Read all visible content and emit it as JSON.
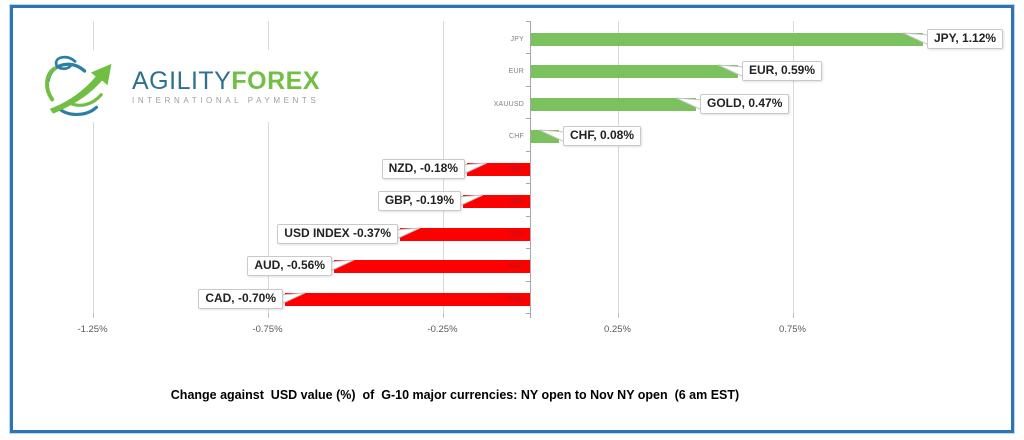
{
  "frame": {
    "border_color": "#2e75b6"
  },
  "logo": {
    "brand_part1": "AGILITY",
    "brand_part2": "FOREX",
    "tagline": "INTERNATIONAL PAYMENTS",
    "colors": {
      "agility": "#2f7092",
      "forex": "#72bf44",
      "tagline": "#9aa0a6",
      "icon_blue": "#2b7fa3",
      "icon_green": "#70bf44"
    }
  },
  "chart_data": {
    "type": "bar",
    "orientation": "horizontal",
    "title": "Change against  USD value (%)  of  G-10 major currencies: NY open to Nov NY open  (6 am EST)",
    "categories": [
      "JPY",
      "EUR",
      "XAUUSD",
      "CHF",
      "NZD",
      "GBP",
      "DXY",
      "AUD",
      "CAD"
    ],
    "values": [
      1.12,
      0.59,
      0.47,
      0.08,
      -0.18,
      -0.19,
      -0.37,
      -0.56,
      -0.7
    ],
    "data_labels": [
      "JPY, 1.12%",
      "EUR, 0.59%",
      "GOLD, 0.47%",
      "CHF, 0.08%",
      "NZD, -0.18%",
      "GBP, -0.19%",
      "USD INDEX -0.37%",
      "AUD, -0.56%",
      "CAD, -0.70%"
    ],
    "x_ticks": [
      {
        "label": "-1.25%",
        "value": -1.25
      },
      {
        "label": "-0.75%",
        "value": -0.75
      },
      {
        "label": "-0.25%",
        "value": -0.25
      },
      {
        "label": "0.25%",
        "value": 0.25
      },
      {
        "label": "0.75%",
        "value": 0.75
      }
    ],
    "xlim": [
      -1.36,
      1.42
    ],
    "grid": true,
    "legend": "none",
    "colors": {
      "positive": "#7bc25e",
      "negative": "#ff0000",
      "gridline": "#d9d9d9",
      "axis_line": "#a6a6a6",
      "tick_label": "#595959",
      "category_label": "#7f7f7f"
    }
  }
}
